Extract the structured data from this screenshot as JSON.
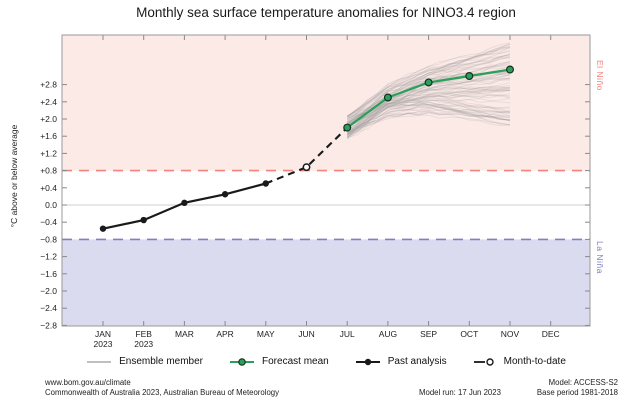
{
  "chart_data": {
    "type": "line",
    "title": "Monthly sea surface temperature anomalies for NINO3.4 region",
    "ylabel": "°C above or below average",
    "x_axis": {
      "months": [
        {
          "label": "JAN",
          "year": "2023"
        },
        {
          "label": "FEB",
          "year": "2023"
        },
        {
          "label": "MAR"
        },
        {
          "label": "APR"
        },
        {
          "label": "MAY"
        },
        {
          "label": "JUN"
        },
        {
          "label": "JUL"
        },
        {
          "label": "AUG"
        },
        {
          "label": "SEP"
        },
        {
          "label": "OCT"
        },
        {
          "label": "NOV"
        },
        {
          "label": "DEC"
        }
      ]
    },
    "y_axis": {
      "tick_labels": [
        "+2.8",
        "+2.4",
        "+2.0",
        "+1.6",
        "+1.2",
        "+0.8",
        "+0.4",
        "0.0",
        "−0.4",
        "−0.8",
        "−1.2",
        "−1.6",
        "−2.0",
        "−2.4",
        "−2.8"
      ],
      "tick_step": 0.4,
      "range_shown": [
        -2.8,
        3.9
      ],
      "grid": "zero-line-only"
    },
    "series": {
      "past_analysis": {
        "label": "Past analysis",
        "start_month_index": 0,
        "months": [
          "JAN",
          "FEB",
          "MAR",
          "APR",
          "MAY"
        ],
        "values": [
          -0.55,
          -0.35,
          0.05,
          0.25,
          0.5
        ],
        "color": "#1a1a1a",
        "style": "solid-filled-circles"
      },
      "month_to_date": {
        "label": "Month-to-date",
        "month_index": 5,
        "month": "JUN",
        "value": 0.88,
        "color": "#1a1a1a",
        "style": "dashed-open-circle"
      },
      "forecast_mean": {
        "label": "Forecast mean",
        "start_month_index": 6,
        "months": [
          "JUL",
          "AUG",
          "SEP",
          "OCT",
          "NOV"
        ],
        "values": [
          1.8,
          2.5,
          2.85,
          3.0,
          3.15
        ],
        "color": "#2aa05c"
      },
      "ensemble": {
        "label": "Ensemble member",
        "count": 90,
        "seed": 13,
        "start_spread": 0.55,
        "end_offset_range": [
          -1.3,
          0.62
        ],
        "color": "#999999",
        "opacity": 0.2
      }
    },
    "thresholds": {
      "el_nino": {
        "value": 0.8,
        "line_color": "#f5827d",
        "fill_color": "#fceae7",
        "label": "El Niño"
      },
      "la_nina": {
        "value": -0.8,
        "line_color": "#8080c4",
        "fill_color": "#dbdbf0",
        "label": "La Niña"
      }
    },
    "zero_line_value": 0.0,
    "legend_position": "bottom-center"
  },
  "legend": {
    "items": [
      {
        "label": "Ensemble member"
      },
      {
        "label": "Forecast mean"
      },
      {
        "label": "Past analysis"
      },
      {
        "label": "Month-to-date"
      }
    ]
  },
  "footer": {
    "left_line1": "www.bom.gov.au/climate",
    "left_line2": "Commonwealth of Australia 2023, Australian Bureau of Meteorology",
    "right_line1": "Model: ACCESS-S2",
    "right_line2a": "Model run: 17 Jun 2023",
    "right_line2b": "Base period 1981-2018"
  }
}
